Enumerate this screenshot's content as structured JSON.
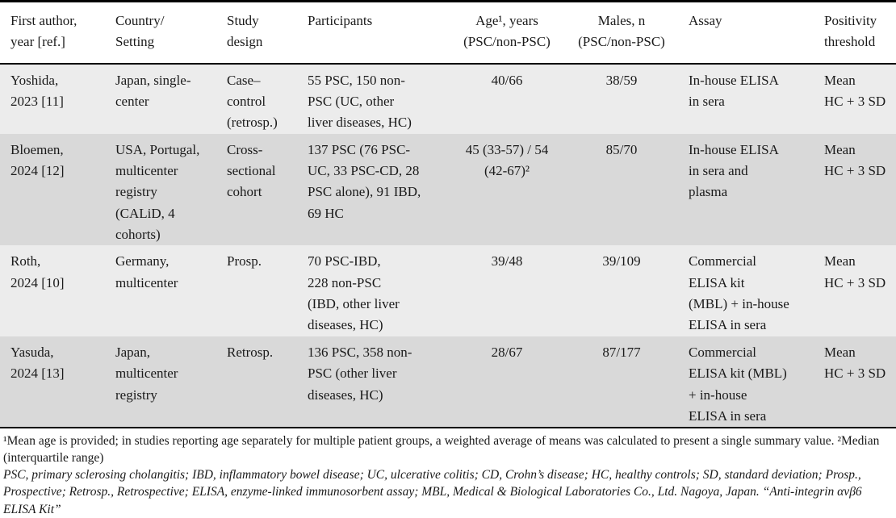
{
  "colors": {
    "row_odd": "#ececec",
    "row_even": "#d9d9d9",
    "rule": "#000000",
    "text": "#1a1a1a",
    "background": "#ffffff"
  },
  "table": {
    "columns": [
      {
        "key": "author",
        "label": "First author,\nyear [ref.]"
      },
      {
        "key": "country",
        "label": "Country/\nSetting"
      },
      {
        "key": "design",
        "label": "Study\ndesign"
      },
      {
        "key": "participants",
        "label": "Participants"
      },
      {
        "key": "age",
        "label": "Age¹, years\n(PSC/non-PSC)"
      },
      {
        "key": "males",
        "label": "Males, n\n(PSC/non-PSC)"
      },
      {
        "key": "assay",
        "label": "Assay"
      },
      {
        "key": "threshold",
        "label": "Positivity\nthreshold"
      }
    ],
    "rows": [
      {
        "author": "Yoshida,\n2023 [11]",
        "country": "Japan, single-\ncenter",
        "design": "Case–\ncontrol\n(retrosp.)",
        "participants": "55 PSC, 150 non-\nPSC (UC, other\nliver diseases, HC)",
        "age": "40/66",
        "males": "38/59",
        "assay": "In-house ELISA\nin sera",
        "threshold": "Mean\nHC + 3 SD"
      },
      {
        "author": "Bloemen,\n2024 [12]",
        "country": "USA, Portugal,\nmulticenter\nregistry\n(CALiD, 4\ncohorts)",
        "design": "Cross-\nsectional\ncohort",
        "participants": "137 PSC (76 PSC-\nUC, 33 PSC-CD, 28\nPSC alone), 91 IBD,\n69 HC",
        "age": "45 (33-57) / 54\n(42-67)²",
        "males": "85/70",
        "assay": "In-house ELISA\nin sera and\nplasma",
        "threshold": "Mean\nHC + 3 SD"
      },
      {
        "author": "Roth,\n2024 [10]",
        "country": "Germany,\nmulticenter",
        "design": "Prosp.",
        "participants": "70 PSC-IBD,\n228 non-PSC\n(IBD, other liver\ndiseases, HC)",
        "age": "39/48",
        "males": "39/109",
        "assay": "Commercial\nELISA kit\n(MBL) + in-house\nELISA in sera",
        "threshold": "Mean\nHC + 3 SD"
      },
      {
        "author": "Yasuda,\n2024 [13]",
        "country": "Japan,\nmulticenter\nregistry",
        "design": "Retrosp.",
        "participants": "136 PSC, 358 non-\nPSC (other liver\ndiseases, HC)",
        "age": "28/67",
        "males": "87/177",
        "assay": "Commercial\nELISA kit (MBL)\n+ in-house\nELISA in sera",
        "threshold": "Mean\nHC + 3 SD"
      }
    ]
  },
  "footnotes": {
    "age_note": "¹Mean age is provided; in studies reporting age separately for multiple patient groups, a weighted average of means was calculated to present a single summary value. ²Median (interquartile range)",
    "abbreviations": "PSC, primary sclerosing cholangitis; IBD, inflammatory bowel disease; UC, ulcerative colitis; CD, Crohn’s disease; HC, healthy controls; SD, standard deviation; Prosp., Prospective; Retrosp., Retrospective; ELISA, enzyme-linked immunosorbent assay; MBL, Medical & Biological Laboratories Co., Ltd. Nagoya, Japan. “Anti-integrin αvβ6 ELISA Kit”"
  }
}
